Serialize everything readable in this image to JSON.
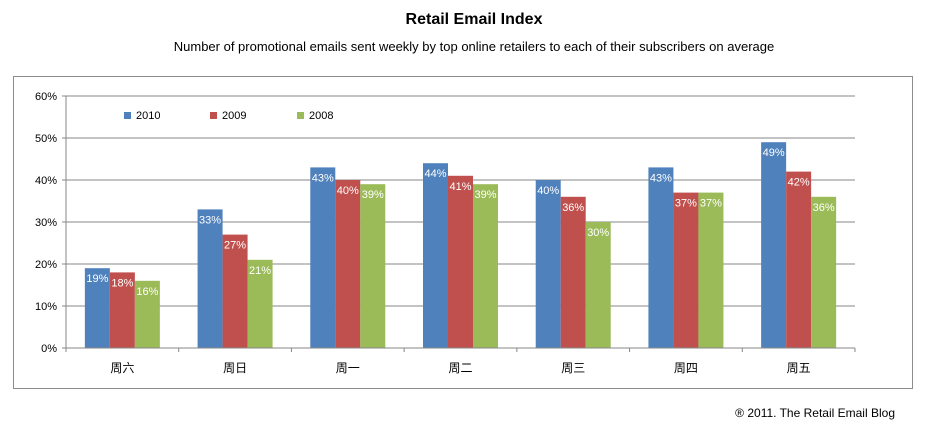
{
  "header": {
    "title": "Retail Email Index",
    "subtitle": "Number of promotional emails sent weekly by top online retailers to each of their subscribers on average"
  },
  "footer": {
    "copyright": "® 2011. The Retail Email Blog"
  },
  "chart_data": {
    "type": "bar",
    "title": "Retail Email Index",
    "subtitle": "Number of promotional emails sent weekly by top online retailers to each of their subscribers on average",
    "categories": [
      "周六",
      "周日",
      "周一",
      "周二",
      "周三",
      "周四",
      "周五"
    ],
    "series": [
      {
        "name": "2010",
        "color": "#4F81BD",
        "values": [
          19,
          33,
          43,
          44,
          40,
          43,
          49
        ]
      },
      {
        "name": "2009",
        "color": "#C0504D",
        "values": [
          18,
          27,
          40,
          41,
          36,
          37,
          42
        ]
      },
      {
        "name": "2008",
        "color": "#9BBB59",
        "values": [
          16,
          21,
          39,
          39,
          30,
          37,
          36
        ]
      }
    ],
    "ylim": [
      0,
      60
    ],
    "yticks": [
      0,
      10,
      20,
      30,
      40,
      50,
      60
    ],
    "ytick_labels": [
      "0%",
      "10%",
      "20%",
      "30%",
      "40%",
      "50%",
      "60%"
    ],
    "value_suffix": "%",
    "grid": true,
    "legend_position": "top-left"
  }
}
